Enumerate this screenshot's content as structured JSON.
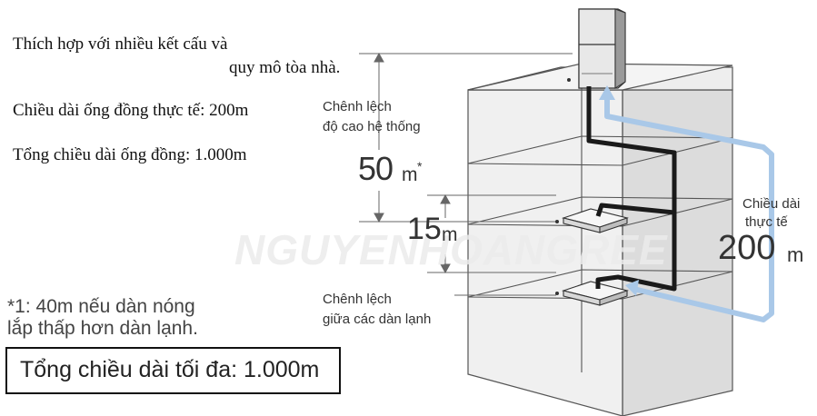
{
  "intro": {
    "line1": "Thích hợp với nhiều kết cấu và",
    "line2": "quy mô tòa nhà.",
    "pipe_length": "Chiều dài ống đồng thực tế: 200m",
    "total_length": "Tổng chiều dài ống đồng: 1.000m"
  },
  "note": {
    "line1": "*1: 40m nếu dàn nóng",
    "line2": "lắp thấp hơn dàn lạnh."
  },
  "max_box": {
    "label": "Tổng chiều dài tối đa: 1.000m"
  },
  "height_diff": {
    "label_line1": "Chênh lệch",
    "label_line2": "độ cao hệ thống",
    "value": "50",
    "unit": "m",
    "mark": "*"
  },
  "indoor_diff": {
    "value": "15",
    "unit": "m",
    "label_line1": "Chênh lệch",
    "label_line2": "giữa các dàn lạnh"
  },
  "actual_length": {
    "label_line1": "Chiều dài",
    "label_line2": "thực tế",
    "value": "200",
    "unit": "m"
  },
  "watermark": "NGUYENHOANGREE",
  "colors": {
    "arrow_blue": "#a9c8e8",
    "pipe": "#1a1a1a",
    "building_line": "#555555",
    "building_fill": "#e9e9e9"
  }
}
